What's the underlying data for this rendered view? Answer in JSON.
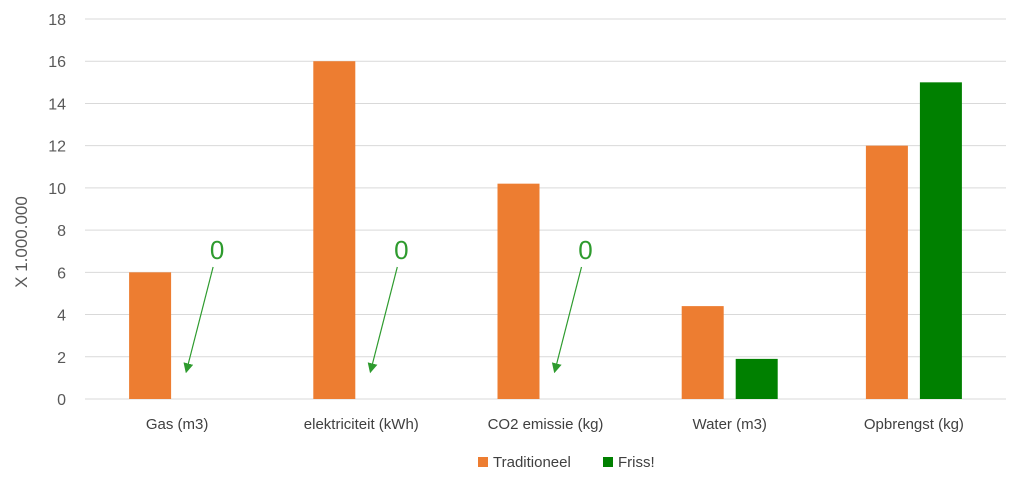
{
  "chart_data": {
    "type": "bar",
    "categories": [
      "Gas (m3)",
      "elektriciteit (kWh)",
      "CO2 emissie (kg)",
      "Water (m3)",
      "Opbrengst (kg)"
    ],
    "series": [
      {
        "name": "Traditioneel",
        "color": "#ed7d31",
        "values": [
          6,
          16,
          10.2,
          4.4,
          12
        ]
      },
      {
        "name": "Friss!",
        "color": "#008000",
        "values": [
          0,
          0,
          0,
          1.9,
          15
        ]
      }
    ],
    "ylabel": "X 1.000.000",
    "xlabel": "",
    "ylim": [
      0,
      18
    ],
    "yticks": [
      0,
      2,
      4,
      6,
      8,
      10,
      12,
      14,
      16,
      18
    ],
    "grid": true,
    "legend_position": "bottom",
    "annotations": [
      {
        "text": "0",
        "category_index": 0,
        "series_index": 1
      },
      {
        "text": "0",
        "category_index": 1,
        "series_index": 1
      },
      {
        "text": "0",
        "category_index": 2,
        "series_index": 1
      }
    ],
    "annotation_color": "#2e9b2e"
  }
}
